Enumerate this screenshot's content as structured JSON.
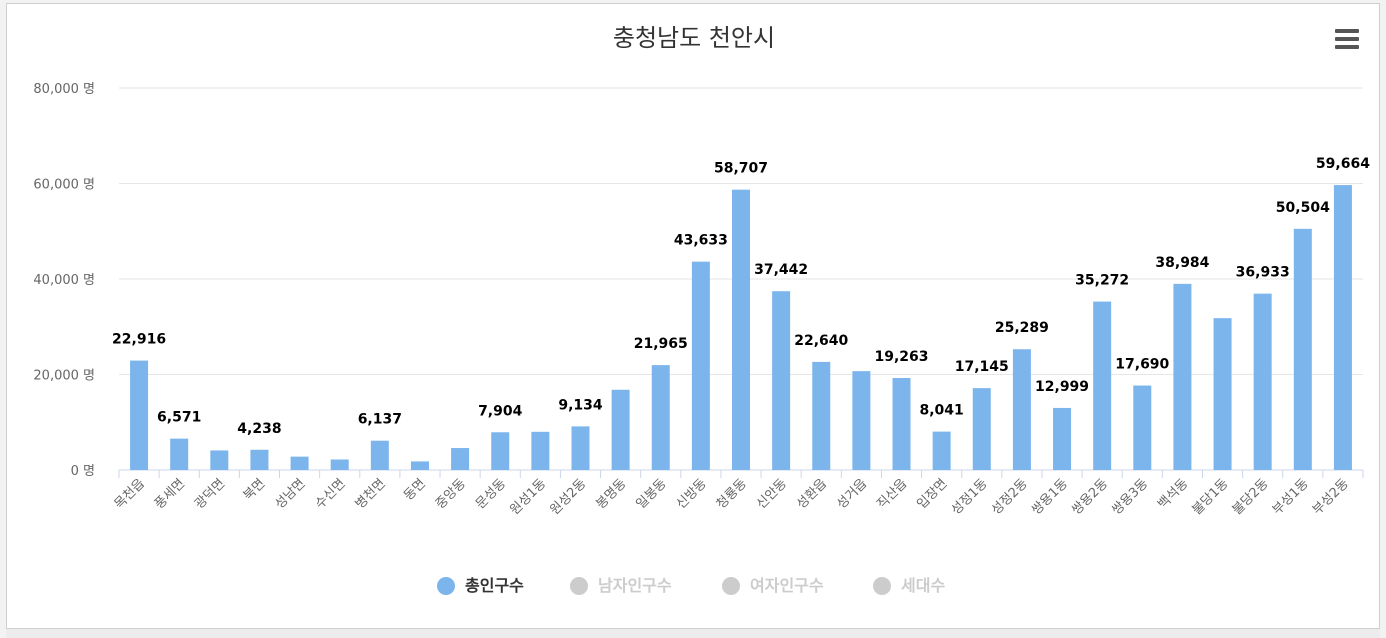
{
  "chart_data": {
    "type": "bar",
    "title": "충청남도 천안시",
    "y_unit": "명",
    "ylim": [
      0,
      80000
    ],
    "yticks": [
      0,
      20000,
      40000,
      60000,
      80000
    ],
    "grid": true,
    "legend_position": "bottom",
    "categories": [
      "목천읍",
      "풍세면",
      "광덕면",
      "북면",
      "성남면",
      "수신면",
      "병천면",
      "동면",
      "중앙동",
      "문성동",
      "원성1동",
      "원성2동",
      "봉명동",
      "일봉동",
      "신방동",
      "청룡동",
      "신안동",
      "성환읍",
      "성거읍",
      "직산읍",
      "입장면",
      "성정1동",
      "성정2동",
      "쌍용1동",
      "쌍용2동",
      "쌍용3동",
      "백석동",
      "불당1동",
      "불당2동",
      "부성1동",
      "부성2동"
    ],
    "series": [
      {
        "name": "총인구수",
        "color": "#7cb5ec",
        "values": [
          22916,
          6571,
          4100,
          4238,
          2800,
          2200,
          6137,
          1800,
          4600,
          7904,
          8000,
          9134,
          16800,
          21965,
          43633,
          58707,
          37442,
          22640,
          20700,
          19263,
          8041,
          17145,
          25289,
          12999,
          35272,
          17690,
          38984,
          31800,
          36933,
          50504,
          59664
        ],
        "data_labels": [
          "22,916",
          "6,571",
          null,
          "4,238",
          null,
          null,
          "6,137",
          null,
          null,
          "7,904",
          null,
          "9,134",
          null,
          "21,965",
          "43,633",
          "58,707",
          "37,442",
          "22,640",
          null,
          "19,263",
          "8,041",
          "17,145",
          "25,289",
          "12,999",
          "35,272",
          "17,690",
          "38,984",
          null,
          "36,933",
          "50,504",
          "59,664"
        ]
      }
    ]
  },
  "legend": [
    {
      "label": "총인구수",
      "active": true,
      "color": "#7cb5ec"
    },
    {
      "label": "남자인구수",
      "active": false,
      "color": "#cccccc"
    },
    {
      "label": "여자인구수",
      "active": false,
      "color": "#cccccc"
    },
    {
      "label": "세대수",
      "active": false,
      "color": "#cccccc"
    }
  ],
  "menu_icon": "hamburger-menu-icon"
}
